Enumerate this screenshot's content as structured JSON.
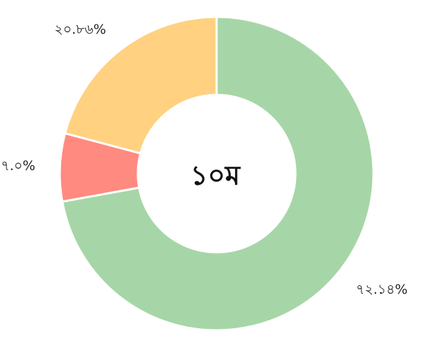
{
  "chart_data": {
    "type": "pie",
    "variant": "donut",
    "center_text": "১০ম",
    "slices": [
      {
        "value": 72.14,
        "label": "৭২.১৪%",
        "color": "#a6d6a7"
      },
      {
        "value": 7.0,
        "label": "৭.০%",
        "color": "#ff8a80"
      },
      {
        "value": 20.86,
        "label": "২০.৮৬%",
        "color": "#ffd180"
      }
    ],
    "legend": "none"
  }
}
